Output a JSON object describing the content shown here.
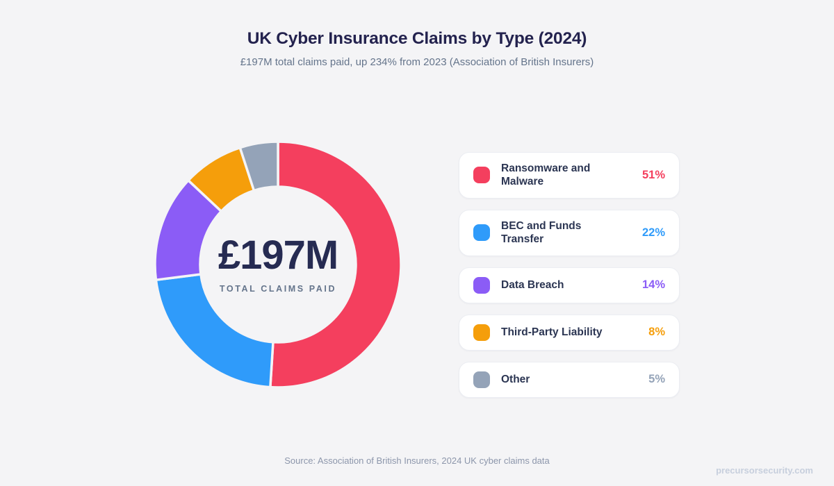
{
  "page": {
    "background": "#F4F4F6"
  },
  "header": {
    "title": "UK Cyber Insurance Claims by Type (2024)",
    "subtitle": "£197M total claims paid, up 234% from 2023 (Association of British Insurers)"
  },
  "chart_data": {
    "type": "pie",
    "donut": true,
    "title": "UK Cyber Insurance Claims by Type (2024)",
    "subtitle": "£197M total claims paid, up 234% from 2023 (Association of British Insurers)",
    "categories": [
      "Ransomware and Malware",
      "BEC and Funds Transfer",
      "Data Breach",
      "Third-Party Liability",
      "Other"
    ],
    "values": [
      51,
      22,
      14,
      8,
      5
    ],
    "unit": "%",
    "colors": [
      "#F43F5E",
      "#2F9BFA",
      "#8B5CF6",
      "#F59E0B",
      "#94A3B8"
    ],
    "start_angle_deg": 0,
    "direction": "clockwise",
    "legend_position": "right",
    "center": {
      "value": "£197M",
      "label": "TOTAL CLAIMS PAID"
    },
    "geometry": {
      "outer_radius": 177,
      "inner_radius": 112,
      "gap_stroke": 3.5
    }
  },
  "donut_center": {
    "value": "£197M",
    "label": "TOTAL CLAIMS PAID"
  },
  "legend": {
    "items": [
      {
        "label": "Ransomware and Malware",
        "value": "51%",
        "color": "#F43F5E"
      },
      {
        "label": "BEC and Funds Transfer",
        "value": "22%",
        "color": "#2F9BFA"
      },
      {
        "label": "Data Breach",
        "value": "14%",
        "color": "#8B5CF6"
      },
      {
        "label": "Third-Party Liability",
        "value": "8%",
        "color": "#F59E0B"
      },
      {
        "label": "Other",
        "value": "5%",
        "color": "#94A3B8"
      }
    ]
  },
  "footer": {
    "source": "Source: Association of British Insurers, 2024 UK cyber claims data",
    "watermark": "precursorsecurity.com"
  }
}
